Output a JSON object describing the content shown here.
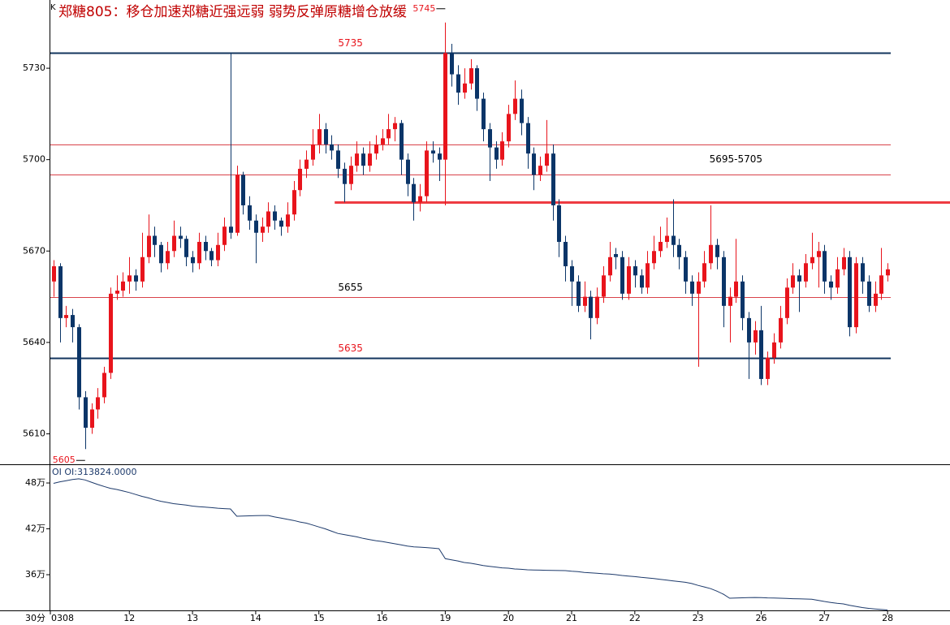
{
  "chart_data": [
    {
      "type": "candlestick",
      "title": "郑糖805：移仓加速郑糖近强远弱 弱势反弹原糖增仓放缓",
      "corner_label": "K",
      "interval": "30分",
      "up_color": "#e8141c",
      "down_color": "#0b3568",
      "ylim": [
        5600,
        5752.4
      ],
      "yticks": [
        5610,
        5640,
        5670,
        5700,
        5730
      ],
      "xlim": [
        -0.5,
        132.5
      ],
      "xticks": [
        {
          "value": -0.5,
          "label": "0308"
        },
        {
          "value": 12,
          "label": "12"
        },
        {
          "value": 22,
          "label": "13"
        },
        {
          "value": 32,
          "label": "14"
        },
        {
          "value": 42,
          "label": "15"
        },
        {
          "value": 52,
          "label": "16"
        },
        {
          "value": 62,
          "label": "19"
        },
        {
          "value": 72,
          "label": "20"
        },
        {
          "value": 82,
          "label": "21"
        },
        {
          "value": 92,
          "label": "22"
        },
        {
          "value": 102,
          "label": "23"
        },
        {
          "value": 112,
          "label": "26"
        },
        {
          "value": 122,
          "label": "27"
        },
        {
          "value": 132,
          "label": "28"
        }
      ],
      "levels": [
        {
          "value": 5735,
          "color": "#13355e",
          "width": 2,
          "label_color": "#e8141c"
        },
        {
          "value": 5705,
          "color": "#d9434a",
          "width": 1
        },
        {
          "value": 5695,
          "color": "#d9434a",
          "width": 1
        },
        {
          "value": 5686,
          "color": "#ee3b42",
          "width": 3,
          "start": 44.5
        },
        {
          "value": 5655,
          "color": "#d9434a",
          "width": 1,
          "label_color": "#000000"
        },
        {
          "value": 5635,
          "color": "#13355e",
          "width": 2,
          "label_color": "#e8141c"
        }
      ],
      "band_label": "5695-5705",
      "high": {
        "value": 5745,
        "index": 62
      },
      "low": {
        "value": 5605,
        "index": 5
      },
      "candles": [
        [
          5660,
          5667,
          5655,
          5665
        ],
        [
          5665,
          5666,
          5640,
          5648
        ],
        [
          5648,
          5652,
          5645,
          5649
        ],
        [
          5649,
          5651,
          5640,
          5645
        ],
        [
          5645,
          5646,
          5618,
          5622
        ],
        [
          5622,
          5624,
          5605,
          5612
        ],
        [
          5612,
          5620,
          5610,
          5618
        ],
        [
          5618,
          5625,
          5615,
          5622
        ],
        [
          5622,
          5632,
          5620,
          5630
        ],
        [
          5630,
          5658,
          5628,
          5656
        ],
        [
          5656,
          5662,
          5654,
          5657
        ],
        [
          5657,
          5663,
          5655,
          5660
        ],
        [
          5660,
          5668,
          5656,
          5662
        ],
        [
          5662,
          5664,
          5657,
          5660
        ],
        [
          5660,
          5676,
          5658,
          5668
        ],
        [
          5668,
          5682,
          5666,
          5675
        ],
        [
          5675,
          5678,
          5668,
          5672
        ],
        [
          5672,
          5673,
          5663,
          5666
        ],
        [
          5666,
          5673,
          5664,
          5670
        ],
        [
          5670,
          5680,
          5668,
          5675
        ],
        [
          5675,
          5678,
          5671,
          5674
        ],
        [
          5674,
          5675,
          5665,
          5668
        ],
        [
          5668,
          5670,
          5663,
          5666
        ],
        [
          5666,
          5676,
          5664,
          5673
        ],
        [
          5673,
          5675,
          5667,
          5670
        ],
        [
          5670,
          5671,
          5665,
          5667
        ],
        [
          5667,
          5676,
          5665,
          5672
        ],
        [
          5672,
          5681,
          5670,
          5678
        ],
        [
          5678,
          5735,
          5674,
          5676
        ],
        [
          5676,
          5698,
          5675,
          5695
        ],
        [
          5695,
          5696,
          5682,
          5685
        ],
        [
          5685,
          5688,
          5677,
          5680
        ],
        [
          5680,
          5682,
          5666,
          5676
        ],
        [
          5676,
          5681,
          5673,
          5678
        ],
        [
          5678,
          5686,
          5676,
          5683
        ],
        [
          5683,
          5685,
          5677,
          5680
        ],
        [
          5680,
          5681,
          5675,
          5678
        ],
        [
          5678,
          5686,
          5676,
          5682
        ],
        [
          5682,
          5693,
          5680,
          5690
        ],
        [
          5690,
          5700,
          5688,
          5697
        ],
        [
          5697,
          5703,
          5694,
          5700
        ],
        [
          5700,
          5710,
          5698,
          5705
        ],
        [
          5705,
          5715,
          5702,
          5710
        ],
        [
          5710,
          5712,
          5702,
          5705
        ],
        [
          5705,
          5708,
          5700,
          5703
        ],
        [
          5703,
          5705,
          5694,
          5697
        ],
        [
          5697,
          5699,
          5686,
          5692
        ],
        [
          5692,
          5701,
          5690,
          5698
        ],
        [
          5698,
          5706,
          5696,
          5702
        ],
        [
          5702,
          5704,
          5695,
          5698
        ],
        [
          5698,
          5706,
          5696,
          5702
        ],
        [
          5702,
          5708,
          5700,
          5705
        ],
        [
          5705,
          5710,
          5703,
          5707
        ],
        [
          5707,
          5715,
          5705,
          5710
        ],
        [
          5710,
          5714,
          5706,
          5712
        ],
        [
          5712,
          5713,
          5695,
          5700
        ],
        [
          5700,
          5702,
          5688,
          5692
        ],
        [
          5692,
          5694,
          5680,
          5686
        ],
        [
          5686,
          5692,
          5683,
          5688
        ],
        [
          5688,
          5706,
          5686,
          5703
        ],
        [
          5703,
          5706,
          5699,
          5702
        ],
        [
          5702,
          5704,
          5693,
          5700
        ],
        [
          5700,
          5745,
          5685,
          5735
        ],
        [
          5735,
          5738,
          5724,
          5728
        ],
        [
          5728,
          5731,
          5718,
          5722
        ],
        [
          5722,
          5730,
          5720,
          5725
        ],
        [
          5725,
          5733,
          5723,
          5730
        ],
        [
          5730,
          5731,
          5716,
          5720
        ],
        [
          5720,
          5722,
          5706,
          5710
        ],
        [
          5710,
          5712,
          5693,
          5704
        ],
        [
          5704,
          5706,
          5697,
          5700
        ],
        [
          5700,
          5709,
          5698,
          5706
        ],
        [
          5706,
          5718,
          5704,
          5715
        ],
        [
          5715,
          5726,
          5713,
          5720
        ],
        [
          5720,
          5723,
          5708,
          5712
        ],
        [
          5712,
          5714,
          5697,
          5702
        ],
        [
          5702,
          5704,
          5690,
          5695
        ],
        [
          5695,
          5701,
          5693,
          5698
        ],
        [
          5698,
          5713,
          5696,
          5702
        ],
        [
          5702,
          5705,
          5680,
          5685
        ],
        [
          5685,
          5687,
          5668,
          5673
        ],
        [
          5673,
          5675,
          5660,
          5665
        ],
        [
          5665,
          5667,
          5652,
          5660
        ],
        [
          5660,
          5662,
          5650,
          5652
        ],
        [
          5652,
          5660,
          5650,
          5655
        ],
        [
          5655,
          5657,
          5641,
          5648
        ],
        [
          5648,
          5658,
          5646,
          5655
        ],
        [
          5655,
          5665,
          5653,
          5662
        ],
        [
          5662,
          5673,
          5660,
          5668
        ],
        [
          5669,
          5671,
          5664,
          5668
        ],
        [
          5668,
          5670,
          5654,
          5656
        ],
        [
          5656,
          5668,
          5654,
          5665
        ],
        [
          5665,
          5667,
          5658,
          5662
        ],
        [
          5662,
          5664,
          5656,
          5658
        ],
        [
          5658,
          5670,
          5656,
          5666
        ],
        [
          5666,
          5675,
          5664,
          5670
        ],
        [
          5670,
          5678,
          5668,
          5673
        ],
        [
          5673,
          5681,
          5671,
          5675
        ],
        [
          5675,
          5687,
          5668,
          5672
        ],
        [
          5672,
          5674,
          5664,
          5668
        ],
        [
          5668,
          5670,
          5656,
          5660
        ],
        [
          5660,
          5662,
          5652,
          5656
        ],
        [
          5656,
          5663,
          5632,
          5660
        ],
        [
          5660,
          5670,
          5658,
          5666
        ],
        [
          5666,
          5685,
          5664,
          5672
        ],
        [
          5672,
          5674,
          5664,
          5668
        ],
        [
          5668,
          5670,
          5645,
          5652
        ],
        [
          5652,
          5658,
          5640,
          5655
        ],
        [
          5655,
          5674,
          5653,
          5660
        ],
        [
          5660,
          5662,
          5644,
          5648
        ],
        [
          5648,
          5650,
          5628,
          5640
        ],
        [
          5640,
          5647,
          5636,
          5644
        ],
        [
          5644,
          5652,
          5626,
          5628
        ],
        [
          5628,
          5637,
          5626,
          5635
        ],
        [
          5635,
          5643,
          5633,
          5640
        ],
        [
          5640,
          5652,
          5638,
          5648
        ],
        [
          5648,
          5661,
          5646,
          5658
        ],
        [
          5658,
          5666,
          5656,
          5662
        ],
        [
          5662,
          5664,
          5650,
          5660
        ],
        [
          5660,
          5669,
          5658,
          5666
        ],
        [
          5666,
          5676,
          5664,
          5668
        ],
        [
          5668,
          5673,
          5658,
          5670
        ],
        [
          5670,
          5672,
          5656,
          5660
        ],
        [
          5660,
          5662,
          5654,
          5658
        ],
        [
          5658,
          5668,
          5656,
          5664
        ],
        [
          5664,
          5671,
          5662,
          5668
        ],
        [
          5668,
          5670,
          5642,
          5645
        ],
        [
          5645,
          5668,
          5643,
          5666
        ],
        [
          5666,
          5668,
          5656,
          5660
        ],
        [
          5660,
          5662,
          5650,
          5652
        ],
        [
          5652,
          5660,
          5650,
          5656
        ],
        [
          5656,
          5671,
          5654,
          5662
        ],
        [
          5662,
          5666,
          5660,
          5664
        ]
      ]
    },
    {
      "type": "line",
      "title": "OI OI:313824.0000",
      "color": "#1d3a6b",
      "ylim": [
        313300,
        503400
      ],
      "yticks": [
        {
          "value": 480000,
          "label": "48万"
        },
        {
          "value": 420000,
          "label": "42万"
        },
        {
          "value": 360000,
          "label": "36万"
        }
      ],
      "values": [
        479500,
        481500,
        483000,
        484500,
        485500,
        484000,
        481000,
        478000,
        475500,
        473000,
        471500,
        469500,
        467500,
        465000,
        462500,
        460500,
        458000,
        456000,
        454500,
        453000,
        452000,
        451000,
        449800,
        449000,
        448400,
        447800,
        447000,
        446500,
        446000,
        436500,
        436800,
        437000,
        437200,
        437400,
        437500,
        435500,
        434200,
        432500,
        431000,
        429000,
        427500,
        425000,
        422500,
        420000,
        417000,
        414000,
        412500,
        411000,
        409500,
        407500,
        406000,
        404500,
        403500,
        402000,
        400500,
        399000,
        397500,
        396500,
        396000,
        395500,
        394800,
        394000,
        381000,
        379500,
        378000,
        376000,
        375000,
        373500,
        372000,
        371000,
        370000,
        369000,
        368500,
        367500,
        367000,
        366400,
        366200,
        366000,
        365800,
        365600,
        365400,
        365300,
        364500,
        364000,
        363000,
        362500,
        361800,
        361200,
        360800,
        360000,
        359000,
        358200,
        357500,
        356500,
        355800,
        355000,
        354000,
        353000,
        352000,
        351000,
        350000,
        348500,
        346000,
        344000,
        341800,
        338500,
        334500,
        329200,
        329500,
        329800,
        330000,
        330200,
        330000,
        329700,
        329500,
        329200,
        328900,
        328600,
        328400,
        328200,
        328000,
        326500,
        325000,
        323700,
        322500,
        321800,
        320000,
        318500,
        317000,
        316000,
        315200,
        314500,
        313824
      ]
    }
  ]
}
